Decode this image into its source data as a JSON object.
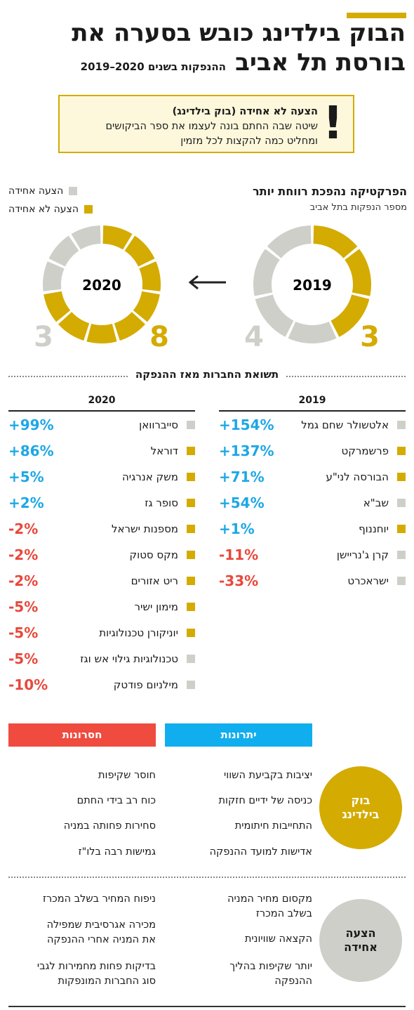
{
  "header": {
    "title_line1": "הבוק בילדינג כובש בסערה את",
    "title_line2": "בורסת תל אביב",
    "subtitle": "ההנפקות בשנים 2020–2019"
  },
  "notice": {
    "icon": "exclamation-icon",
    "title": "הצעה לא אחידה (בוק בילדינג)",
    "line1": "שיטה שבה החתם בונה לעצמו את ספר הביקושים",
    "line2": "ומחליט כמה להקצות לכל מזמין"
  },
  "practice": {
    "title": "הפרקטיקה נהפכת רווחת יותר",
    "subtitle": "מספר הנפקות בתל אביב"
  },
  "legend": {
    "uniform": "הצעה אחידה",
    "non_uniform": "הצעה לא אחידה"
  },
  "colors": {
    "gold": "#d4ab00",
    "gray": "#cfcfca",
    "blue": "#1ea7e6",
    "red": "#e8483b"
  },
  "chart_data": [
    {
      "type": "pie",
      "year": "2019",
      "categories": [
        "הצעה לא אחידה",
        "הצעה אחידה"
      ],
      "values": [
        3,
        4
      ],
      "labels": [
        "3",
        "4"
      ]
    },
    {
      "type": "pie",
      "year": "2020",
      "categories": [
        "הצעה לא אחידה",
        "הצעה אחידה"
      ],
      "values": [
        8,
        3
      ],
      "labels": [
        "8",
        "3"
      ]
    }
  ],
  "reaction": {
    "title": "תשואת החברות מאז ההנפקה",
    "col_2019": "2019",
    "col_2020": "2020",
    "rows_2019": [
      {
        "name": "אלטשולר שחם גמל",
        "pct": "+154%",
        "type": "uniform"
      },
      {
        "name": "פרשמרקט",
        "pct": "+137%",
        "type": "non_uniform"
      },
      {
        "name": "הבורסה לני\"ע",
        "pct": "+71%",
        "type": "non_uniform"
      },
      {
        "name": "שב\"א",
        "pct": "+54%",
        "type": "uniform"
      },
      {
        "name": "יוחננוף",
        "pct": "+1%",
        "type": "non_uniform"
      },
      {
        "name": "קרן ג'נריישן",
        "pct": "-11%",
        "type": "uniform"
      },
      {
        "name": "ישראכרט",
        "pct": "-33%",
        "type": "uniform"
      }
    ],
    "rows_2020": [
      {
        "name": "סייברוואן",
        "pct": "+99%",
        "type": "uniform"
      },
      {
        "name": "דוראל",
        "pct": "+86%",
        "type": "non_uniform"
      },
      {
        "name": "משק אנרגיה",
        "pct": "+5%",
        "type": "non_uniform"
      },
      {
        "name": "סופר גז",
        "pct": "+2%",
        "type": "non_uniform"
      },
      {
        "name": "מספנות ישראל",
        "pct": "-2%",
        "type": "non_uniform"
      },
      {
        "name": "מקס סטוק",
        "pct": "-2%",
        "type": "non_uniform"
      },
      {
        "name": "ריט אזורים",
        "pct": "-2%",
        "type": "non_uniform"
      },
      {
        "name": "מימון ישיר",
        "pct": "-5%",
        "type": "non_uniform"
      },
      {
        "name": "יוניקורן טכנולוגיות",
        "pct": "-5%",
        "type": "non_uniform"
      },
      {
        "name": "טכנולוגיות גילוי אש וגז",
        "pct": "-5%",
        "type": "uniform"
      },
      {
        "name": "מילניום פודטק",
        "pct": "-10%",
        "type": "uniform"
      }
    ]
  },
  "comparison": {
    "advantages_label": "יתרונות",
    "disadvantages_label": "חסרונות",
    "book_building": {
      "name": "בוק בילדינג",
      "advantages": [
        "יציבות בקביעת השווי",
        "כניסה של ידיים חזקות",
        "התחייבות חיתומית",
        "אדישות למועד ההנפקה"
      ],
      "disadvantages": [
        "חוסר שקיפות",
        "כוח רב בידי החתם",
        "סחירות פחותה במניה",
        "גמישות רבה בלו\"ז"
      ]
    },
    "uniform_offer": {
      "name": "הצעה אחידה",
      "advantages": [
        "מקסום מחיר המניה\nבשלב המכרז",
        "הקצאה שוויונית",
        "יותר שקיפות בהליך\nההנפקה"
      ],
      "disadvantages": [
        "ניפוח המחיר בשלב המכרז",
        "מכירה אגרסיבית שמפילה\nאת המניה אחרי ההנפקה",
        "בדיקות פחות מחמירות לגבי\nסוג החברות המונפקות"
      ]
    }
  }
}
